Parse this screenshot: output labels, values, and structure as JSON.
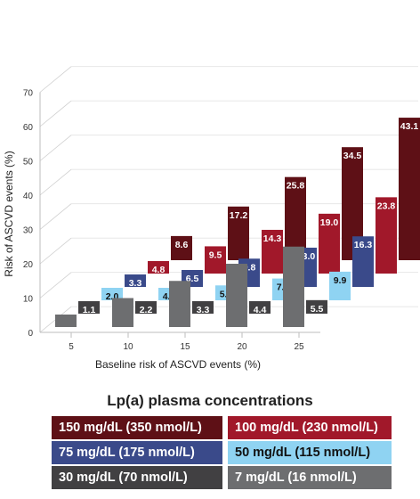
{
  "chart_data": {
    "type": "bar",
    "ylabel": "Risk of ASCVD events (%)",
    "xlabel": "Baseline risk of ASCVD events (%)",
    "y_ticks": [
      0,
      10,
      20,
      30,
      40,
      50,
      60,
      70
    ],
    "x_ticks": [
      5,
      10,
      15,
      20,
      25
    ],
    "categories": [
      5,
      10,
      15,
      20,
      25
    ],
    "series": [
      {
        "name": "7 mg/dL (16 nmol/L)",
        "color": "#6d6e70",
        "values": [
          5,
          10,
          15,
          20,
          25
        ],
        "labels": [
          "",
          "",
          "",
          "",
          ""
        ]
      },
      {
        "name": "30 mg/dL (70 nmol/L)",
        "color": "#414042",
        "values": [
          1.1,
          2.2,
          3.3,
          4.4,
          5.5
        ],
        "labels": [
          "1.1",
          "2.2",
          "3.3",
          "4.4",
          "5.5"
        ]
      },
      {
        "name": "50 mg/dL (115 nmol/L)",
        "color": "#8fd3f2",
        "values": [
          2.0,
          4.0,
          5.9,
          7.9,
          9.9
        ],
        "labels": [
          "2.0",
          "4.0",
          "5.9",
          "7.9",
          "9.9"
        ]
      },
      {
        "name": "75 mg/dL (175 nmol/L)",
        "color": "#3a4a8a",
        "values": [
          3.3,
          6.5,
          9.8,
          13.0,
          16.3
        ],
        "labels": [
          "3.3",
          "6.5",
          "9.8",
          "13.0",
          "16.3"
        ]
      },
      {
        "name": "100 mg/dL (230 nmol/L)",
        "color": "#a1182a",
        "values": [
          4.8,
          9.5,
          14.3,
          19.0,
          23.8
        ],
        "labels": [
          "4.8",
          "9.5",
          "14.3",
          "19.0",
          "23.8"
        ]
      },
      {
        "name": "150 mg/dL (350 nmol/L)",
        "color": "#5e1016",
        "values": [
          8.6,
          17.2,
          25.8,
          34.5,
          43.1
        ],
        "labels": [
          "8.6",
          "17.2",
          "25.8",
          "34.5",
          "43.1"
        ]
      }
    ],
    "legend_title": "Lp(a) plasma concentrations",
    "legend": [
      {
        "label": "150 mg/dL (350 nmol/L)",
        "color": "#5e1016"
      },
      {
        "label": "100 mg/dL (230 nmol/L)",
        "color": "#a1182a"
      },
      {
        "label": "75 mg/dL (175 nmol/L)",
        "color": "#3a4a8a"
      },
      {
        "label": "50 mg/dL (115 nmol/L)",
        "color": "#8fd3f2"
      },
      {
        "label": "30 mg/dL (70 nmol/L)",
        "color": "#414042"
      },
      {
        "label": "7 mg/dL (16 nmol/L)",
        "color": "#6d6e70"
      }
    ]
  }
}
